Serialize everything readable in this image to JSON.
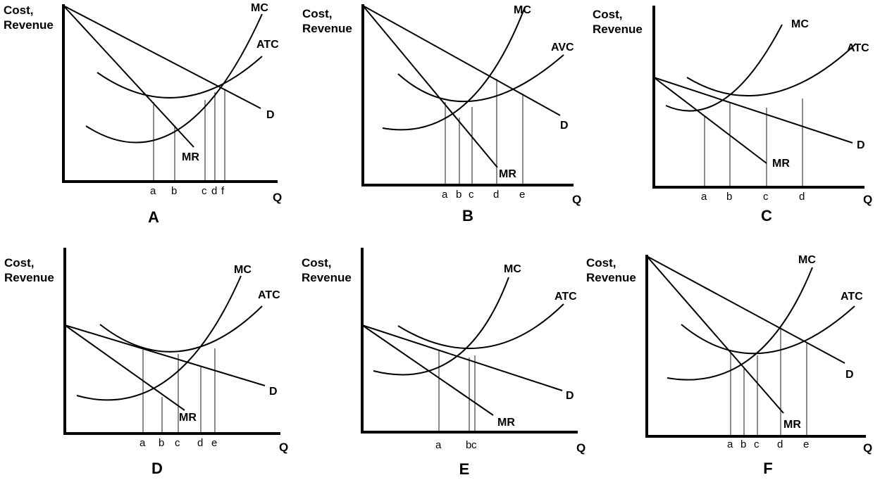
{
  "axis_labels": {
    "y_line1": "Cost,",
    "y_line2": "Revenue",
    "x": "Q"
  },
  "panels": [
    {
      "id": "A",
      "curves": [
        "MC",
        "ATC",
        "D",
        "MR"
      ],
      "ticks": [
        "a",
        "b",
        "c",
        "d",
        "f"
      ]
    },
    {
      "id": "B",
      "curves": [
        "MC",
        "AVC",
        "D",
        "MR"
      ],
      "ticks": [
        "a",
        "b",
        "c",
        "d",
        "e"
      ]
    },
    {
      "id": "C",
      "curves": [
        "MC",
        "ATC",
        "D",
        "MR"
      ],
      "ticks": [
        "a",
        "b",
        "c",
        "d"
      ]
    },
    {
      "id": "D",
      "curves": [
        "MC",
        "ATC",
        "D",
        "MR"
      ],
      "ticks": [
        "a",
        "b",
        "c",
        "d",
        "e"
      ]
    },
    {
      "id": "E",
      "curves": [
        "MC",
        "ATC",
        "D",
        "MR"
      ],
      "ticks": [
        "a",
        "b",
        "c"
      ]
    },
    {
      "id": "F",
      "curves": [
        "MC",
        "ATC",
        "D",
        "MR"
      ],
      "ticks": [
        "a",
        "b",
        "c",
        "d",
        "e"
      ]
    }
  ]
}
